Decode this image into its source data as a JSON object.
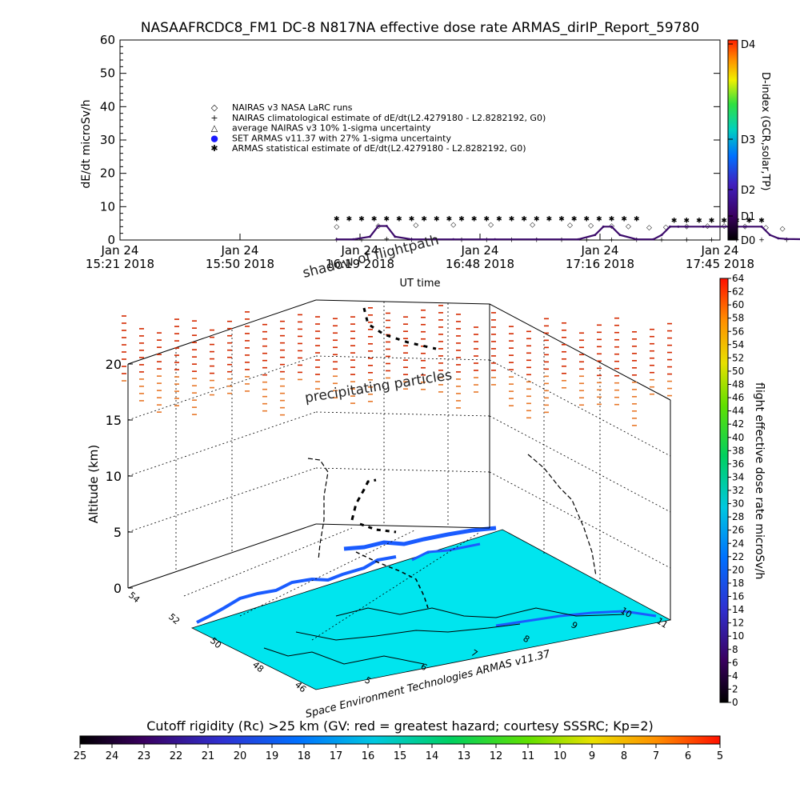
{
  "title": "NASAAFRCDC8_FM1 DC-8    N817NA effective dose rate ARMAS_dirIP_Report_59780",
  "chart_data": [
    {
      "type": "line",
      "ylabel": "dE/dt microSv/h",
      "xlabel": "UT time",
      "ylim": [
        0,
        60
      ],
      "y_ticks": [
        "0",
        "10",
        "20",
        "30",
        "40",
        "50",
        "60"
      ],
      "x_ticks": [
        {
          "day": "Jan 24",
          "time": "15:21",
          "year": "2018"
        },
        {
          "day": "Jan 24",
          "time": "15:50",
          "year": "2018"
        },
        {
          "day": "Jan 24",
          "time": "16:19",
          "year": "2018"
        },
        {
          "day": "Jan 24",
          "time": "16:48",
          "year": "2018"
        },
        {
          "day": "Jan 24",
          "time": "17:16",
          "year": "2018"
        },
        {
          "day": "Jan 24",
          "time": "17:45",
          "year": "2018"
        }
      ],
      "legend": [
        {
          "symbol": "◇",
          "label": "NAIRAS v3 NASA LaRC runs",
          "color": "#000000"
        },
        {
          "symbol": "+",
          "label": "NAIRAS climatological estimate of dE/dt(L2.4279180 - L2.8282192, G0)",
          "color": "#000000"
        },
        {
          "symbol": "△",
          "label": "average NAIRAS v3 10% 1-sigma uncertainty",
          "color": "#000000"
        },
        {
          "symbol": "●",
          "label": "SET ARMAS v11.37 with 27% 1-sigma uncertainty",
          "color": "#1a1aff"
        },
        {
          "symbol": "✱",
          "label": "ARMAS statistical estimate of dE/dt(L2.4279180 - L2.8282192, G0)",
          "color": "#000000"
        }
      ],
      "series": [
        {
          "name": "NAIRAS v3 NASA LaRC runs",
          "x_min": [
            52,
            62,
            71,
            80,
            89,
            99,
            108,
            113,
            118,
            122,
            127,
            131,
            136,
            141,
            145,
            150,
            155,
            159,
            164,
            169,
            174,
            183,
            192,
            201,
            210,
            220,
            230,
            240,
            250,
            260,
            270,
            280
          ],
          "values": [
            4.2,
            4.5,
            4.7,
            4.8,
            4.8,
            4.8,
            4.7,
            4.6,
            4.5,
            4.3,
            4.0,
            4.1,
            4.3,
            4.4,
            4.4,
            4.3,
            4.0,
            3.6,
            3.2,
            2.9,
            2.6,
            2.2,
            1.8,
            1.4,
            1.1,
            0.8,
            0.6,
            0.5,
            0.4,
            0.3,
            0.25,
            0.2
          ]
        },
        {
          "name": "NAIRAS climatological estimate of dE/dt(L2.4279180 - L2.8282192, G0)",
          "x_min": [
            52,
            58,
            64,
            70,
            76,
            82,
            88,
            94,
            100,
            106,
            112,
            118,
            124,
            130,
            136,
            142,
            148,
            154,
            160,
            166,
            172,
            178,
            184,
            190,
            196,
            202,
            208,
            214,
            220,
            226,
            232,
            238,
            244,
            250,
            256,
            262,
            268,
            274,
            280
          ],
          "values": [
            0.3,
            0.3,
            0.5,
            0.3,
            0.3,
            0.3,
            0.3,
            0.3,
            0.3,
            0.3,
            0.3,
            0.3,
            0.3,
            0.3,
            0.3,
            0.3,
            0.3,
            0.3,
            0.3,
            0.3,
            0.3,
            0.3,
            0.3,
            0.3,
            0.3,
            0.3,
            0.3,
            0.3,
            0.3,
            0.3,
            0.3,
            0.3,
            0.3,
            0.3,
            0.3,
            0.3,
            0.3,
            0.3,
            0.3
          ]
        },
        {
          "name": "SET ARMAS v11.37 with 27% 1-sigma uncertainty",
          "x_min": [
            52,
            56,
            60,
            62,
            64,
            66,
            70,
            80,
            90,
            100,
            110,
            114,
            116,
            118,
            120,
            124,
            128,
            130,
            132,
            134,
            136,
            140,
            150,
            154,
            156,
            158,
            160,
            165,
            170,
            180,
            190,
            200,
            210,
            220,
            230,
            240,
            250,
            260,
            270,
            280
          ],
          "values": [
            0.2,
            0.2,
            1.0,
            4.2,
            4.2,
            1.0,
            0.2,
            0.2,
            0.2,
            0.2,
            0.2,
            1.5,
            4.0,
            4.0,
            1.5,
            0.2,
            0.2,
            1.5,
            4.0,
            4.0,
            4.0,
            4.0,
            4.0,
            4.0,
            1.5,
            0.5,
            0.3,
            0.2,
            0.2,
            0.1,
            0.1,
            0.1,
            0.1,
            0.1,
            0.1,
            0.1,
            0.1,
            0.1,
            0.1,
            0.1
          ]
        },
        {
          "name": "ARMAS statistical estimate of dE/dt(L2.4279180 - L2.8282192, G0)",
          "x_min": [
            52,
            55,
            58,
            61,
            64,
            67,
            70,
            73,
            76,
            79,
            82,
            85,
            88,
            91,
            94,
            97,
            100,
            103,
            106,
            109,
            112,
            115,
            118,
            121,
            124,
            127,
            130,
            133,
            136,
            139,
            142,
            145,
            148,
            151,
            154
          ],
          "values": [
            6.5,
            6.5,
            6.5,
            6.5,
            6.5,
            6.5,
            6.5,
            6.5,
            6.5,
            6.5,
            6.5,
            6.5,
            6.5,
            6.5,
            6.5,
            6.5,
            6.5,
            6.5,
            6.5,
            6.5,
            6.5,
            6.5,
            6.5,
            6.5,
            6.5,
            null,
            null,
            6.0,
            6.0,
            6.0,
            6.0,
            6.0,
            6.0,
            6.0,
            6.0
          ]
        }
      ],
      "right_colorbar": {
        "label": "D-index (GCR,solar,TP)",
        "ticks": [
          "D0",
          "D1",
          "D2",
          "D3",
          "D4"
        ]
      }
    },
    {
      "type": "scatter",
      "ylabel": "Altitude (km)",
      "z_ticks": [
        "0",
        "5",
        "10",
        "15",
        "20"
      ],
      "lat_ticks": [
        "54",
        "52",
        "50",
        "48",
        "46"
      ],
      "lon_ticks": [
        "5",
        "6",
        "7",
        "8",
        "9",
        "10",
        "11"
      ],
      "annotations": [
        "shadow of flightpath",
        "precipitating particles"
      ],
      "credit": "Space Environment Technologies ARMAS v11.37",
      "right_colorbar": {
        "label": "flight effective dose rate microSv/h",
        "ticks": [
          "0",
          "2",
          "4",
          "6",
          "8",
          "10",
          "12",
          "14",
          "16",
          "18",
          "20",
          "22",
          "24",
          "26",
          "28",
          "30",
          "32",
          "34",
          "36",
          "38",
          "40",
          "42",
          "44",
          "46",
          "48",
          "50",
          "52",
          "54",
          "56",
          "58",
          "60",
          "62",
          "64"
        ]
      },
      "bottom_colorbar": {
        "label": "Cutoff rigidity (Rc) >25 km (GV: red = greatest hazard; courtesy SSSRC; Kp=2)",
        "ticks": [
          "25",
          "24",
          "23",
          "22",
          "21",
          "20",
          "19",
          "18",
          "17",
          "16",
          "15",
          "14",
          "13",
          "12",
          "11",
          "10",
          "9",
          "8",
          "7",
          "6",
          "5"
        ]
      }
    }
  ],
  "colors": {
    "map_fill": "#00e5ee",
    "coast": "#1a5cff",
    "particles_high": "#d42a00",
    "particles_mid": "#e8782a",
    "flight": "#000000"
  }
}
